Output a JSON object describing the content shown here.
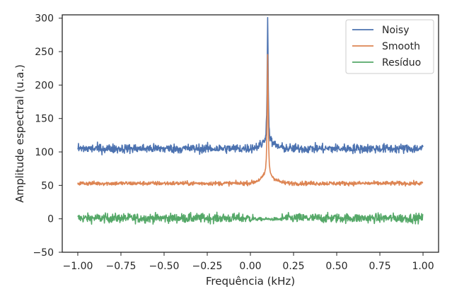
{
  "chart_data": {
    "type": "line",
    "xlabel": "Frequência (kHz)",
    "ylabel": "Amplitude espectral (u.a.)",
    "xlim": [
      -1.09,
      1.09
    ],
    "ylim": [
      -50,
      305
    ],
    "x_ticks": [
      -1.0,
      -0.75,
      -0.5,
      -0.25,
      0.0,
      0.25,
      0.5,
      0.75,
      1.0
    ],
    "x_tick_labels": [
      "−1.00",
      "−0.75",
      "−0.50",
      "−0.25",
      "0.00",
      "0.25",
      "0.50",
      "0.75",
      "1.00"
    ],
    "y_ticks": [
      -50,
      0,
      50,
      100,
      150,
      200,
      250,
      300
    ],
    "y_tick_labels": [
      "−50",
      "0",
      "50",
      "100",
      "150",
      "200",
      "250",
      "300"
    ],
    "grid": false,
    "legend_position": "top-right",
    "peak_x": 0.1,
    "series": [
      {
        "name": "Noisy",
        "color": "#4c72b0",
        "baseline": 105,
        "noise_amplitude": 3.5,
        "peak_height": 290
      },
      {
        "name": "Smooth",
        "color": "#dd8452",
        "baseline": 53,
        "noise_amplitude": 1.6,
        "peak_height": 236
      },
      {
        "name": "Resíduo",
        "color": "#55a868",
        "baseline": 1,
        "noise_amplitude": 3.5,
        "peak_height": 0
      }
    ]
  }
}
